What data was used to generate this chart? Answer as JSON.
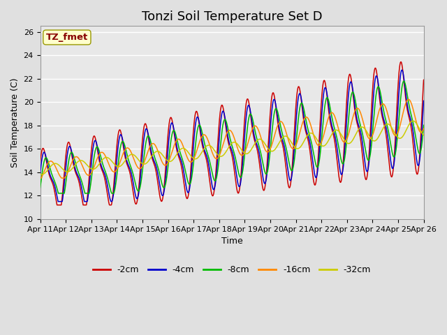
{
  "title": "Tonzi Soil Temperature Set D",
  "xlabel": "Time",
  "ylabel": "Soil Temperature (C)",
  "ylim": [
    10,
    26.5
  ],
  "x_tick_labels": [
    "Apr 11",
    "Apr 12",
    "Apr 13",
    "Apr 14",
    "Apr 15",
    "Apr 16",
    "Apr 17",
    "Apr 18",
    "Apr 19",
    "Apr 20",
    "Apr 21",
    "Apr 22",
    "Apr 23",
    "Apr 24",
    "Apr 25",
    "Apr 26"
  ],
  "legend_labels": [
    "-2cm",
    "-4cm",
    "-8cm",
    "-16cm",
    "-32cm"
  ],
  "legend_colors": [
    "#cc0000",
    "#0000cc",
    "#00bb00",
    "#ff8800",
    "#cccc00"
  ],
  "annotation_text": "TZ_fmet",
  "annotation_bg": "#ffffcc",
  "annotation_fg": "#880000",
  "bg_color": "#e0e0e0",
  "plot_bg": "#e8e8e8",
  "grid_color": "#ffffff",
  "title_fontsize": 13,
  "axis_label_fontsize": 9,
  "tick_fontsize": 8,
  "legend_fontsize": 9
}
